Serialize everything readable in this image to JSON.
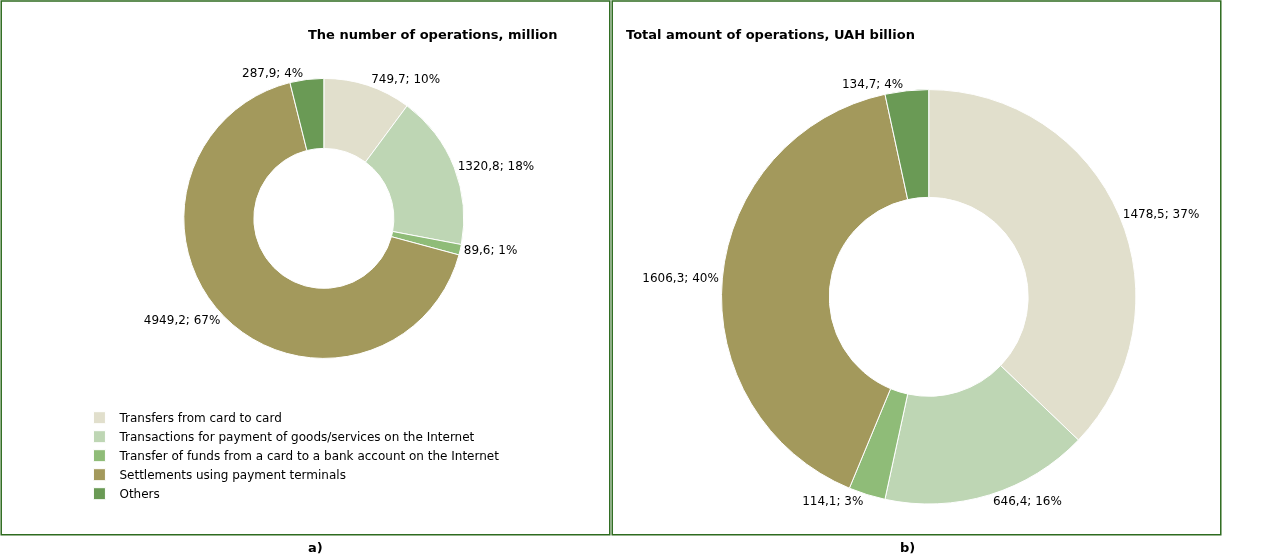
{
  "chart_data": [
    {
      "type": "donut",
      "title": "The number of operations, million",
      "categories": [
        "Transfers from card to card",
        "Transactions for payment of goods/services on the Internet",
        "Transfer of funds from a card to a bank account on the Internet",
        "Settlements using payment terminals",
        "Others"
      ],
      "values": [
        749.7,
        1320.8,
        89.6,
        4949.2,
        287.9
      ],
      "value_labels": [
        "749,7; 10%",
        "1320,8; 18%",
        "89,6; 1%",
        "4949,2; 67%",
        "287,9; 4%"
      ],
      "colors": [
        "#e1dfcc",
        "#bed6b4",
        "#8fbc78",
        "#a3995c",
        "#6a9a55"
      ],
      "legend": "bottom",
      "annotations": [
        "a)"
      ]
    },
    {
      "type": "donut",
      "title": "Total amount of operations, UAH billion",
      "values": [
        1478.5,
        646.4,
        114.1,
        1606.3,
        134.7
      ],
      "value_labels": [
        "1478,5; 37%",
        "646,4; 16%",
        "114,1; 3%",
        "1606,3; 40%",
        "134,7; 4%"
      ],
      "colors": [
        "#e1dfcc",
        "#bed6b4",
        "#8fbc78",
        "#a3995c",
        "#6a9a55"
      ],
      "legend": false,
      "annotations": [
        "b)"
      ]
    }
  ]
}
